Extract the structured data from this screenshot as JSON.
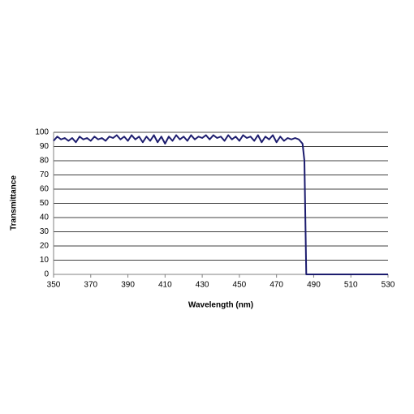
{
  "chart_data": {
    "type": "line",
    "x_label": "Wavelength (nm)",
    "y_label": "Transmittance",
    "x": [
      350,
      352,
      354,
      356,
      358,
      360,
      362,
      364,
      366,
      368,
      370,
      372,
      374,
      376,
      378,
      380,
      382,
      384,
      386,
      388,
      390,
      392,
      394,
      396,
      398,
      400,
      402,
      404,
      406,
      408,
      410,
      412,
      414,
      416,
      418,
      420,
      422,
      424,
      426,
      428,
      430,
      432,
      434,
      436,
      438,
      440,
      442,
      444,
      446,
      448,
      450,
      452,
      454,
      456,
      458,
      460,
      462,
      464,
      466,
      468,
      470,
      472,
      474,
      476,
      478,
      480,
      482,
      484,
      485,
      486,
      490,
      530
    ],
    "series": [
      {
        "name": "Transmittance",
        "color": "#1c1c6e",
        "values": [
          94,
          97,
          95,
          96,
          94,
          96,
          93,
          97,
          95,
          96,
          94,
          97,
          95,
          96,
          94,
          97,
          96,
          98,
          95,
          97,
          94,
          98,
          95,
          97,
          93,
          97,
          94,
          98,
          93,
          97,
          92,
          97,
          94,
          98,
          95,
          97,
          94,
          98,
          95,
          97,
          96,
          98,
          95,
          98,
          96,
          97,
          94,
          98,
          95,
          97,
          94,
          98,
          96,
          97,
          94,
          98,
          93,
          97,
          95,
          98,
          93,
          97,
          94,
          96,
          95,
          96,
          95,
          92,
          80,
          0,
          0,
          0
        ]
      }
    ],
    "xlim": [
      350,
      530
    ],
    "ylim": [
      0,
      100
    ],
    "xticks": [
      350,
      370,
      390,
      410,
      430,
      450,
      470,
      490,
      510,
      530
    ],
    "yticks": [
      0,
      10,
      20,
      30,
      40,
      50,
      60,
      70,
      80,
      90,
      100
    ],
    "grid": true
  }
}
